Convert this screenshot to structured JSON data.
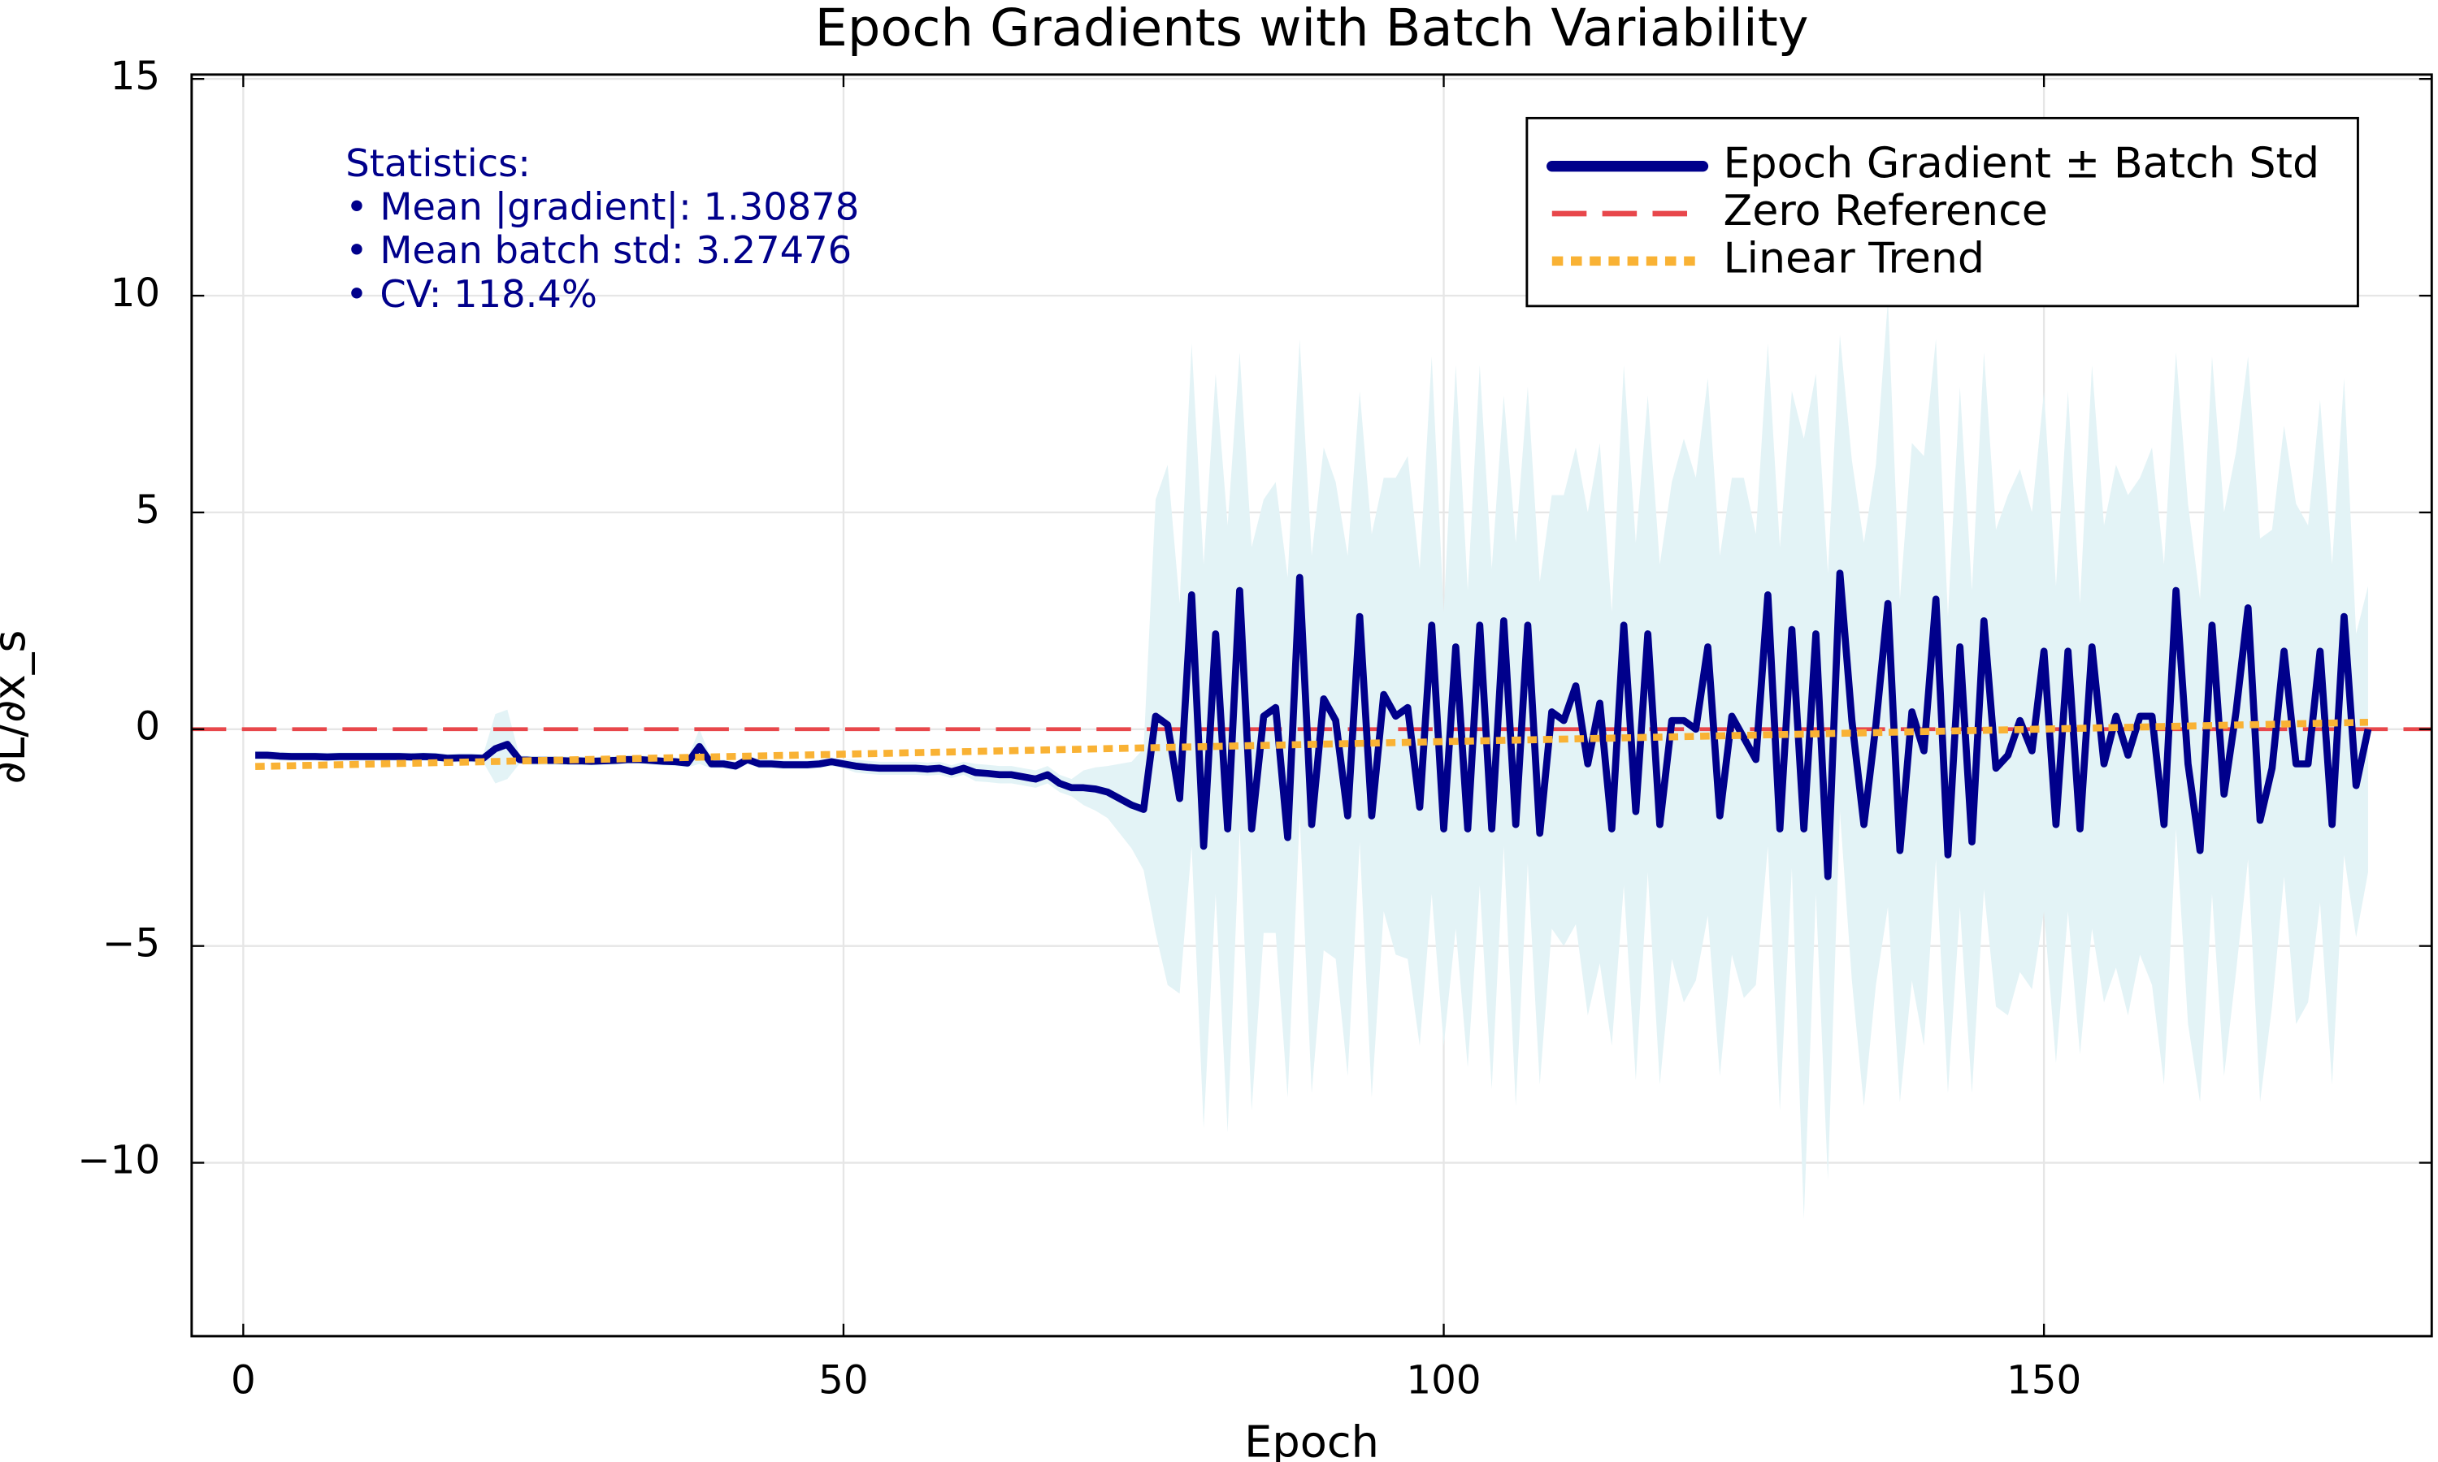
{
  "chart_data": {
    "type": "line",
    "title": "Epoch Gradients with Batch Variability",
    "x_label": "Epoch",
    "y_label": "∂L/∂x_s",
    "xlim": [
      -4.3,
      182.3
    ],
    "ylim": [
      -14,
      15.1
    ],
    "xticks": [
      0,
      50,
      100,
      150
    ],
    "yticks": [
      {
        "value": -10,
        "label": "−10"
      },
      {
        "value": -5,
        "label": "−5"
      },
      0,
      5,
      10,
      15
    ],
    "grid": true,
    "legend": "upper right",
    "annotations": [
      "Statistics:",
      "• Mean |gradient|: 1.30878",
      "• Mean batch std: 3.27476",
      "• CV: 118.4%"
    ],
    "series": [
      {
        "name": "Epoch Gradient ± Batch Std",
        "color": "#00008b",
        "band_color": "#e3f3f6",
        "x": [
          1,
          2,
          3,
          4,
          5,
          6,
          7,
          8,
          9,
          10,
          11,
          12,
          13,
          14,
          15,
          16,
          17,
          18,
          19,
          20,
          21,
          22,
          23,
          24,
          25,
          26,
          27,
          28,
          29,
          30,
          31,
          32,
          33,
          34,
          35,
          36,
          37,
          38,
          39,
          40,
          41,
          42,
          43,
          44,
          45,
          46,
          47,
          48,
          49,
          50,
          51,
          52,
          53,
          54,
          55,
          56,
          57,
          58,
          59,
          60,
          61,
          62,
          63,
          64,
          65,
          66,
          67,
          68,
          69,
          70,
          71,
          72,
          73,
          74,
          75,
          76,
          77,
          78,
          79,
          80,
          81,
          82,
          83,
          84,
          85,
          86,
          87,
          88,
          89,
          90,
          91,
          92,
          93,
          94,
          95,
          96,
          97,
          98,
          99,
          100,
          101,
          102,
          103,
          104,
          105,
          106,
          107,
          108,
          109,
          110,
          111,
          112,
          113,
          114,
          115,
          116,
          117,
          118,
          119,
          120,
          121,
          122,
          123,
          124,
          125,
          126,
          127,
          128,
          129,
          130,
          131,
          132,
          133,
          134,
          135,
          136,
          137,
          138,
          139,
          140,
          141,
          142,
          143,
          144,
          145,
          146,
          147,
          148,
          149,
          150,
          151,
          152,
          153,
          154,
          155,
          156,
          157,
          158,
          159,
          160,
          161,
          162,
          163,
          164,
          165,
          166,
          167,
          168,
          169,
          170,
          171,
          172,
          173,
          174,
          175,
          176,
          177
        ],
        "values": [
          -0.6,
          -0.6,
          -0.62,
          -0.63,
          -0.63,
          -0.63,
          -0.64,
          -0.63,
          -0.63,
          -0.63,
          -0.63,
          -0.63,
          -0.63,
          -0.64,
          -0.63,
          -0.64,
          -0.67,
          -0.66,
          -0.66,
          -0.67,
          -0.45,
          -0.35,
          -0.7,
          -0.72,
          -0.72,
          -0.72,
          -0.73,
          -0.73,
          -0.74,
          -0.73,
          -0.72,
          -0.7,
          -0.7,
          -0.72,
          -0.74,
          -0.75,
          -0.78,
          -0.4,
          -0.8,
          -0.8,
          -0.85,
          -0.7,
          -0.8,
          -0.8,
          -0.82,
          -0.82,
          -0.82,
          -0.8,
          -0.75,
          -0.8,
          -0.85,
          -0.88,
          -0.9,
          -0.9,
          -0.9,
          -0.9,
          -0.92,
          -0.9,
          -0.98,
          -0.9,
          -1.0,
          -1.02,
          -1.05,
          -1.05,
          -1.1,
          -1.15,
          -1.05,
          -1.25,
          -1.35,
          -1.35,
          -1.38,
          -1.45,
          -1.6,
          -1.75,
          -1.85,
          0.3,
          0.1,
          -1.6,
          3.1,
          -2.7,
          2.2,
          -2.3,
          3.2,
          -2.3,
          0.3,
          0.5,
          -2.5,
          3.5,
          -2.2,
          0.7,
          0.2,
          -2.0,
          2.6,
          -2.0,
          0.8,
          0.3,
          0.5,
          -1.8,
          2.4,
          -2.3,
          1.9,
          -2.3,
          2.4,
          -2.3,
          2.5,
          -2.2,
          2.4,
          -2.4,
          0.4,
          0.2,
          1.0,
          -0.8,
          0.6,
          -2.3,
          2.4,
          -1.9,
          2.2,
          -2.2,
          0.2,
          0.2,
          0.0,
          1.9,
          -2.0,
          0.3,
          -0.2,
          -0.7,
          3.1,
          -2.3,
          2.3,
          -2.3,
          2.2,
          -3.4,
          3.6,
          0.2,
          -2.2,
          0.1,
          2.9,
          -2.8,
          0.4,
          -0.5,
          3.0,
          -2.9,
          1.9,
          -2.6,
          2.5,
          -0.9,
          -0.6,
          0.2,
          -0.5,
          1.8,
          -2.2,
          1.8,
          -2.3,
          1.9,
          -0.8,
          0.3,
          -0.6,
          0.3,
          0.3,
          -2.2,
          3.2,
          -0.8,
          -2.8,
          2.4,
          -1.5,
          0.4,
          2.8,
          -2.1,
          -0.9,
          1.8,
          -0.8,
          -0.8,
          1.8,
          -2.2,
          2.6,
          -1.3,
          0.0
        ],
        "std": [
          0.1,
          0.1,
          0.1,
          0.1,
          0.1,
          0.1,
          0.1,
          0.1,
          0.1,
          0.1,
          0.1,
          0.1,
          0.1,
          0.1,
          0.1,
          0.1,
          0.1,
          0.1,
          0.1,
          0.1,
          0.8,
          0.8,
          0.1,
          0.1,
          0.1,
          0.1,
          0.1,
          0.1,
          0.1,
          0.1,
          0.1,
          0.1,
          0.1,
          0.1,
          0.1,
          0.1,
          0.1,
          0.4,
          0.1,
          0.1,
          0.1,
          0.1,
          0.1,
          0.1,
          0.1,
          0.1,
          0.1,
          0.1,
          0.1,
          0.1,
          0.15,
          0.15,
          0.15,
          0.15,
          0.15,
          0.15,
          0.15,
          0.15,
          0.15,
          0.15,
          0.2,
          0.2,
          0.2,
          0.2,
          0.2,
          0.2,
          0.2,
          0.2,
          0.2,
          0.4,
          0.5,
          0.6,
          0.8,
          1.0,
          1.4,
          5.0,
          6.0,
          4.5,
          5.8,
          6.5,
          6.0,
          7.0,
          5.5,
          6.5,
          5.0,
          5.2,
          6.0,
          5.5,
          6.2,
          5.8,
          5.5,
          6.0,
          5.2,
          6.5,
          5.0,
          5.5,
          5.8,
          5.5,
          6.2,
          5.0,
          6.5,
          5.5,
          6.0,
          6.0,
          5.2,
          6.5,
          5.5,
          5.8,
          5.0,
          5.2,
          5.5,
          5.8,
          6.0,
          5.0,
          6.0,
          6.2,
          5.5,
          6.0,
          5.5,
          6.5,
          5.8,
          6.2,
          6.0,
          5.5,
          6.0,
          5.2,
          5.8,
          6.5,
          5.5,
          9.0,
          6.0,
          7.0,
          5.5,
          6.0,
          6.5,
          6.0,
          7.0,
          5.8,
          6.2,
          6.8,
          6.0,
          5.5,
          6.0,
          5.8,
          6.2,
          5.5,
          6.0,
          5.8,
          5.5,
          6.0,
          5.5,
          6.0,
          5.2,
          6.5,
          5.5,
          5.8,
          6.0,
          5.5,
          6.2,
          6.0,
          5.5,
          6.0,
          5.8,
          6.2,
          6.5,
          6.0,
          5.8,
          6.5,
          5.5,
          5.2,
          6.0,
          5.5,
          5.8,
          6.0,
          5.5,
          3.5,
          3.3
        ]
      },
      {
        "name": "Zero Reference",
        "color": "#e8474b",
        "y": 0
      },
      {
        "name": "Linear Trend",
        "color": "#f9b234",
        "x": [
          1,
          177
        ],
        "values": [
          -0.86,
          0.16
        ]
      }
    ]
  }
}
